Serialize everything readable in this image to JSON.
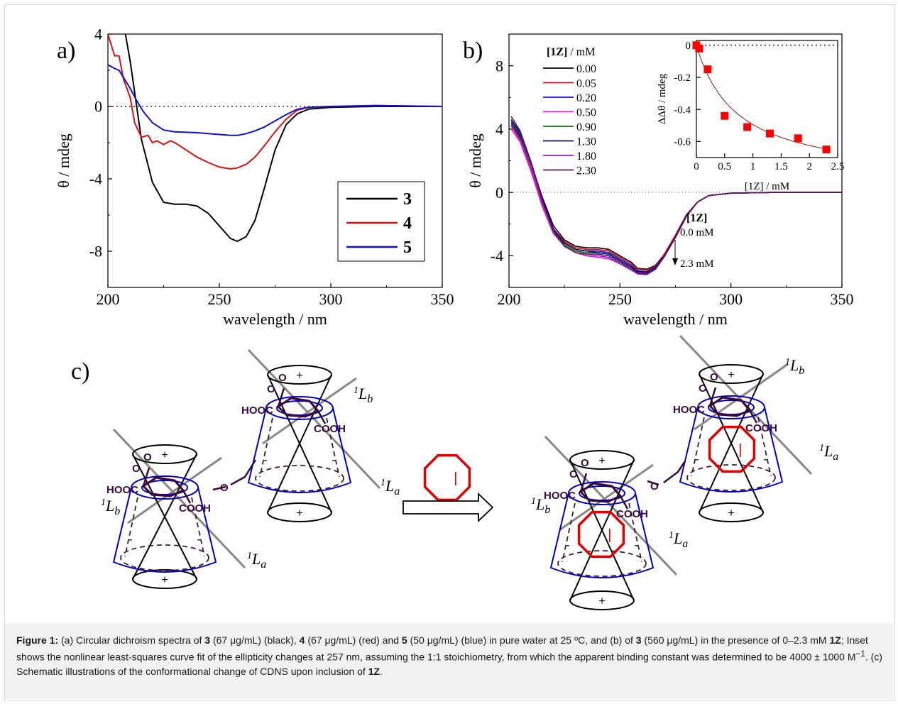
{
  "chart_data": [
    {
      "panel": "a)",
      "type": "line",
      "xlabel": "wavelength / nm",
      "ylabel": "θ / mdeg",
      "xlim": [
        200,
        350
      ],
      "ylim": [
        -10,
        4
      ],
      "xticks": [
        200,
        250,
        300,
        350
      ],
      "yticks": [
        4,
        0,
        -4,
        -8
      ],
      "zero_line": "dotted",
      "legend_position": "bottom-right",
      "series": [
        {
          "name": "3",
          "color": "#000000",
          "x": [
            205,
            210,
            215,
            220,
            225,
            230,
            235,
            240,
            245,
            250,
            255,
            258,
            262,
            266,
            270,
            275,
            280,
            285,
            290,
            300,
            320,
            350
          ],
          "y": [
            6.0,
            2.5,
            -1.8,
            -4.2,
            -5.3,
            -5.4,
            -5.4,
            -5.5,
            -5.9,
            -6.6,
            -7.3,
            -7.45,
            -7.2,
            -6.3,
            -4.6,
            -2.4,
            -1.0,
            -0.4,
            -0.15,
            -0.05,
            0.0,
            0.0
          ]
        },
        {
          "name": "4",
          "color": "#e01010",
          "x": [
            200,
            203,
            205,
            207,
            210,
            212,
            215,
            218,
            220,
            222,
            225,
            228,
            230,
            235,
            240,
            245,
            250,
            255,
            258,
            262,
            266,
            270,
            275,
            280,
            285,
            290,
            300,
            320,
            350
          ],
          "y": [
            4.0,
            2.8,
            2.8,
            1.5,
            0.5,
            -0.9,
            -1.7,
            -1.6,
            -2.0,
            -1.9,
            -2.1,
            -1.9,
            -2.0,
            -2.4,
            -2.8,
            -3.1,
            -3.35,
            -3.45,
            -3.4,
            -3.2,
            -2.8,
            -2.2,
            -1.4,
            -0.7,
            -0.2,
            -0.05,
            0.0,
            0.05,
            0.0
          ]
        },
        {
          "name": "5",
          "color": "#1010d0",
          "x": [
            200,
            203,
            205,
            208,
            210,
            213,
            216,
            220,
            225,
            230,
            240,
            250,
            255,
            258,
            262,
            266,
            270,
            275,
            280,
            285,
            290,
            300,
            320,
            350
          ],
          "y": [
            2.3,
            2.1,
            2.0,
            1.4,
            1.0,
            0.3,
            -0.3,
            -0.9,
            -1.3,
            -1.4,
            -1.45,
            -1.55,
            -1.6,
            -1.6,
            -1.5,
            -1.35,
            -1.15,
            -0.8,
            -0.45,
            -0.15,
            -0.05,
            0.0,
            0.05,
            0.0
          ]
        }
      ]
    },
    {
      "panel": "b)",
      "type": "line",
      "xlabel": "wavelength / nm",
      "ylabel": "θ / mdeg",
      "xlim": [
        200,
        350
      ],
      "ylim": [
        -6,
        10
      ],
      "xticks": [
        200,
        250,
        300,
        350
      ],
      "yticks": [
        8,
        4,
        0,
        -4
      ],
      "zero_line": "dotted",
      "legend_title": "[1Z] / mM",
      "legend_position": "top-left",
      "annotation": {
        "title": "[1Z]",
        "from": "0.0 mM",
        "to": "2.3 mM"
      },
      "series": [
        {
          "name": "0.00",
          "color": "#000000",
          "y": [
            4.3,
            3.5,
            1.8,
            -0.3,
            -2.1,
            -3.0,
            -3.4,
            -3.5,
            -3.5,
            -3.6,
            -4.0,
            -4.4,
            -4.8,
            -4.85,
            -4.6,
            -3.9,
            -2.7,
            -1.4,
            -0.6,
            -0.2,
            -0.05,
            0.0,
            0.0,
            0.0
          ]
        },
        {
          "name": "0.05",
          "color": "#e01010",
          "y": [
            4.2,
            3.3,
            1.5,
            -0.7,
            -2.3,
            -3.1,
            -3.5,
            -3.6,
            -3.6,
            -3.7,
            -4.1,
            -4.5,
            -4.85,
            -4.9,
            -4.65,
            -3.9,
            -2.7,
            -1.4,
            -0.6,
            -0.2,
            -0.05,
            0.0,
            0.0,
            0.0
          ]
        },
        {
          "name": "0.20",
          "color": "#1010d0",
          "y": [
            4.4,
            3.6,
            1.7,
            -0.5,
            -2.4,
            -3.2,
            -3.6,
            -3.7,
            -3.7,
            -3.8,
            -4.2,
            -4.6,
            -4.95,
            -5.0,
            -4.7,
            -4.0,
            -2.8,
            -1.45,
            -0.6,
            -0.2,
            -0.05,
            0.0,
            0.0,
            0.0
          ]
        },
        {
          "name": "0.50",
          "color": "#e020e0",
          "y": [
            4.0,
            3.2,
            1.3,
            -0.9,
            -2.6,
            -3.4,
            -3.8,
            -4.0,
            -4.1,
            -4.2,
            -4.5,
            -4.8,
            -5.05,
            -5.1,
            -4.8,
            -4.05,
            -2.8,
            -1.45,
            -0.6,
            -0.2,
            -0.05,
            0.0,
            0.0,
            0.0
          ]
        },
        {
          "name": "0.90",
          "color": "#107010",
          "y": [
            4.5,
            3.7,
            1.8,
            -0.5,
            -2.4,
            -3.3,
            -3.7,
            -3.8,
            -3.8,
            -3.9,
            -4.3,
            -4.7,
            -5.0,
            -5.05,
            -4.75,
            -4.0,
            -2.8,
            -1.45,
            -0.6,
            -0.2,
            -0.05,
            0.0,
            0.0,
            0.0
          ]
        },
        {
          "name": "1.30",
          "color": "#0a0a60",
          "y": [
            4.6,
            3.8,
            1.9,
            -0.4,
            -2.3,
            -3.2,
            -3.6,
            -3.7,
            -3.8,
            -3.9,
            -4.3,
            -4.7,
            -5.0,
            -5.05,
            -4.75,
            -4.0,
            -2.8,
            -1.45,
            -0.6,
            -0.2,
            -0.05,
            0.0,
            0.0,
            0.0
          ]
        },
        {
          "name": "1.80",
          "color": "#9020c0",
          "y": [
            4.3,
            3.4,
            1.6,
            -0.7,
            -2.5,
            -3.4,
            -3.8,
            -4.0,
            -4.0,
            -4.1,
            -4.5,
            -4.9,
            -5.15,
            -5.2,
            -4.85,
            -4.05,
            -2.85,
            -1.5,
            -0.6,
            -0.2,
            -0.05,
            0.0,
            0.0,
            0.0
          ]
        },
        {
          "name": "2.30",
          "color": "#601060",
          "y": [
            4.8,
            3.9,
            1.9,
            -0.5,
            -2.4,
            -3.4,
            -3.8,
            -3.9,
            -3.9,
            -4.0,
            -4.4,
            -4.8,
            -5.1,
            -5.15,
            -4.85,
            -4.05,
            -2.85,
            -1.5,
            -0.6,
            -0.2,
            -0.05,
            0.0,
            0.0,
            0.0
          ]
        }
      ],
      "x": [
        201,
        205,
        210,
        215,
        220,
        225,
        230,
        235,
        240,
        245,
        250,
        255,
        258,
        262,
        266,
        270,
        275,
        280,
        285,
        290,
        300,
        320,
        335,
        350
      ]
    },
    {
      "panel": "b) inset",
      "type": "scatter",
      "xlabel": "[1Z] / mM",
      "ylabel": "ΔΔθ / mdeg",
      "xlim": [
        0,
        2.5
      ],
      "ylim": [
        -0.7,
        0.03
      ],
      "xticks": [
        0,
        0.5,
        1,
        1.5,
        2,
        2.5
      ],
      "xticklabels": [
        "0",
        "0.5",
        "1",
        "1.5",
        "2",
        "2.5"
      ],
      "yticks": [
        0,
        -0.2,
        -0.4,
        -0.6
      ],
      "points_color": "#ff0000",
      "points": {
        "x": [
          0.0,
          0.05,
          0.2,
          0.5,
          0.9,
          1.3,
          1.8,
          2.3
        ],
        "y": [
          0.0,
          -0.02,
          -0.15,
          -0.44,
          -0.51,
          -0.55,
          -0.58,
          -0.65
        ]
      },
      "fit_color": "#8b1a1a"
    }
  ],
  "scheme": {
    "panel_label": "c)",
    "labels": {
      "la": "1L",
      "la_sub": "a",
      "lb": "1L",
      "lb_sub": "b",
      "o": "O",
      "cooh": "COOH",
      "hooc": "HOOC",
      "plus": "+",
      "minus": "-",
      "bond_i": "|"
    },
    "colors": {
      "cone": "#000000",
      "cavity": "#0000cc",
      "dashed": "#3b1d3b",
      "dansyl": "#3a0a3a",
      "axis": "#888888",
      "guest": "#e00000"
    }
  },
  "caption": {
    "lead": "Figure 1:",
    "seg1": " (a) Circular dichroism spectra of ",
    "c3": "3",
    "seg2": " (67 μg/mL) (black), ",
    "c4": "4",
    "seg3": " (67 μg/mL) (red) and ",
    "c5": "5",
    "seg4": " (50 μg/mL) (blue) in pure water at 25 ºC, and (b) of ",
    "c3b": "3",
    "seg5": " (560 μg/mL) in the presence of 0–2.3 mM ",
    "c1z": "1Z",
    "seg6": "; Inset shows the nonlinear least-squares curve fit of the ellipticity changes at 257 nm, assuming the 1:1 stoichiometry, from which the apparent binding constant was determined to be 4000 ± 1000 M",
    "sup": "−1",
    "seg7": ". (c) Schematic illustrations of the conformational change of CDNS upon inclusion of ",
    "c1z2": "1Z",
    "seg8": "."
  }
}
